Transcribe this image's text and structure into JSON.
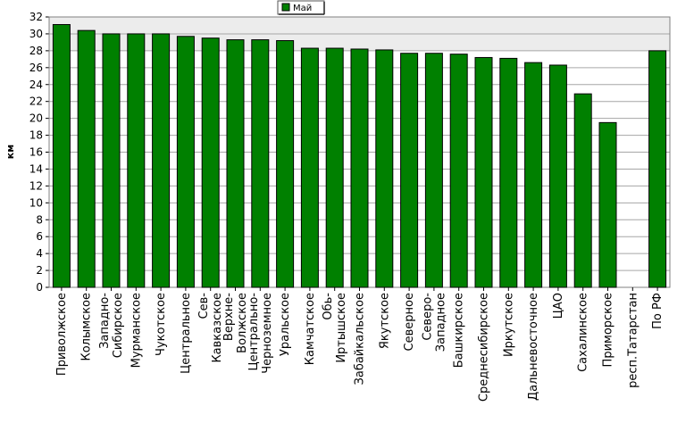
{
  "chart_data": {
    "type": "bar",
    "title": "",
    "xlabel": "",
    "ylabel": "км",
    "ylim": [
      0,
      32
    ],
    "yticks": [
      0,
      2,
      4,
      6,
      8,
      10,
      12,
      14,
      16,
      18,
      20,
      22,
      24,
      26,
      28,
      30,
      32
    ],
    "grid": true,
    "legend_position": "top-center",
    "series": [
      {
        "name": "Май",
        "color": "#008000",
        "values": [
          31.1,
          30.4,
          30.0,
          30.0,
          30.0,
          29.7,
          29.5,
          29.3,
          29.3,
          29.2,
          28.3,
          28.3,
          28.2,
          28.1,
          27.7,
          27.7,
          27.6,
          27.2,
          27.1,
          26.6,
          26.3,
          22.9,
          19.5,
          null,
          28.0
        ]
      }
    ],
    "categories": [
      "Приволжское",
      "Колымское",
      "Западно-Сибирское",
      "Мурманское",
      "Чукотское",
      "Центральное",
      "Сев-Кавказское",
      "Верхне-Волжское",
      "Центрально-Черноземное",
      "Уральское",
      "Камчатское",
      "Обь-Иртышское",
      "Забайкальское",
      "Якутское",
      "Северное",
      "Северо-Западное",
      "Башкирское",
      "Среднесибирское",
      "Иркутское",
      "Дальневосточное",
      "ЦАО",
      "Сахалинское",
      "Приморское",
      "респ.Татарстан",
      "По РФ"
    ],
    "label_lines": [
      [
        "Приволжское"
      ],
      [
        "Колымское"
      ],
      [
        "Западно-",
        "Сибирское"
      ],
      [
        "Мурманское"
      ],
      [
        "Чукотское"
      ],
      [
        "Центральное"
      ],
      [
        "Сев-",
        "Кавказское"
      ],
      [
        "Верхне-",
        "Волжское"
      ],
      [
        "Центрально-",
        "Черноземное"
      ],
      [
        "Уральское"
      ],
      [
        "Камчатское"
      ],
      [
        "Обь-",
        "Иртышское"
      ],
      [
        "Забайкальское"
      ],
      [
        "Якутское"
      ],
      [
        "Северное"
      ],
      [
        "Северо-",
        "Западное"
      ],
      [
        "Башкирское"
      ],
      [
        "Среднесибирское"
      ],
      [
        "Иркутское"
      ],
      [
        "Дальневосточное"
      ],
      [
        "ЦАО"
      ],
      [
        "Сахалинское"
      ],
      [
        "Приморское"
      ],
      [
        "респ.Татарстан"
      ],
      [
        "По РФ"
      ]
    ]
  }
}
